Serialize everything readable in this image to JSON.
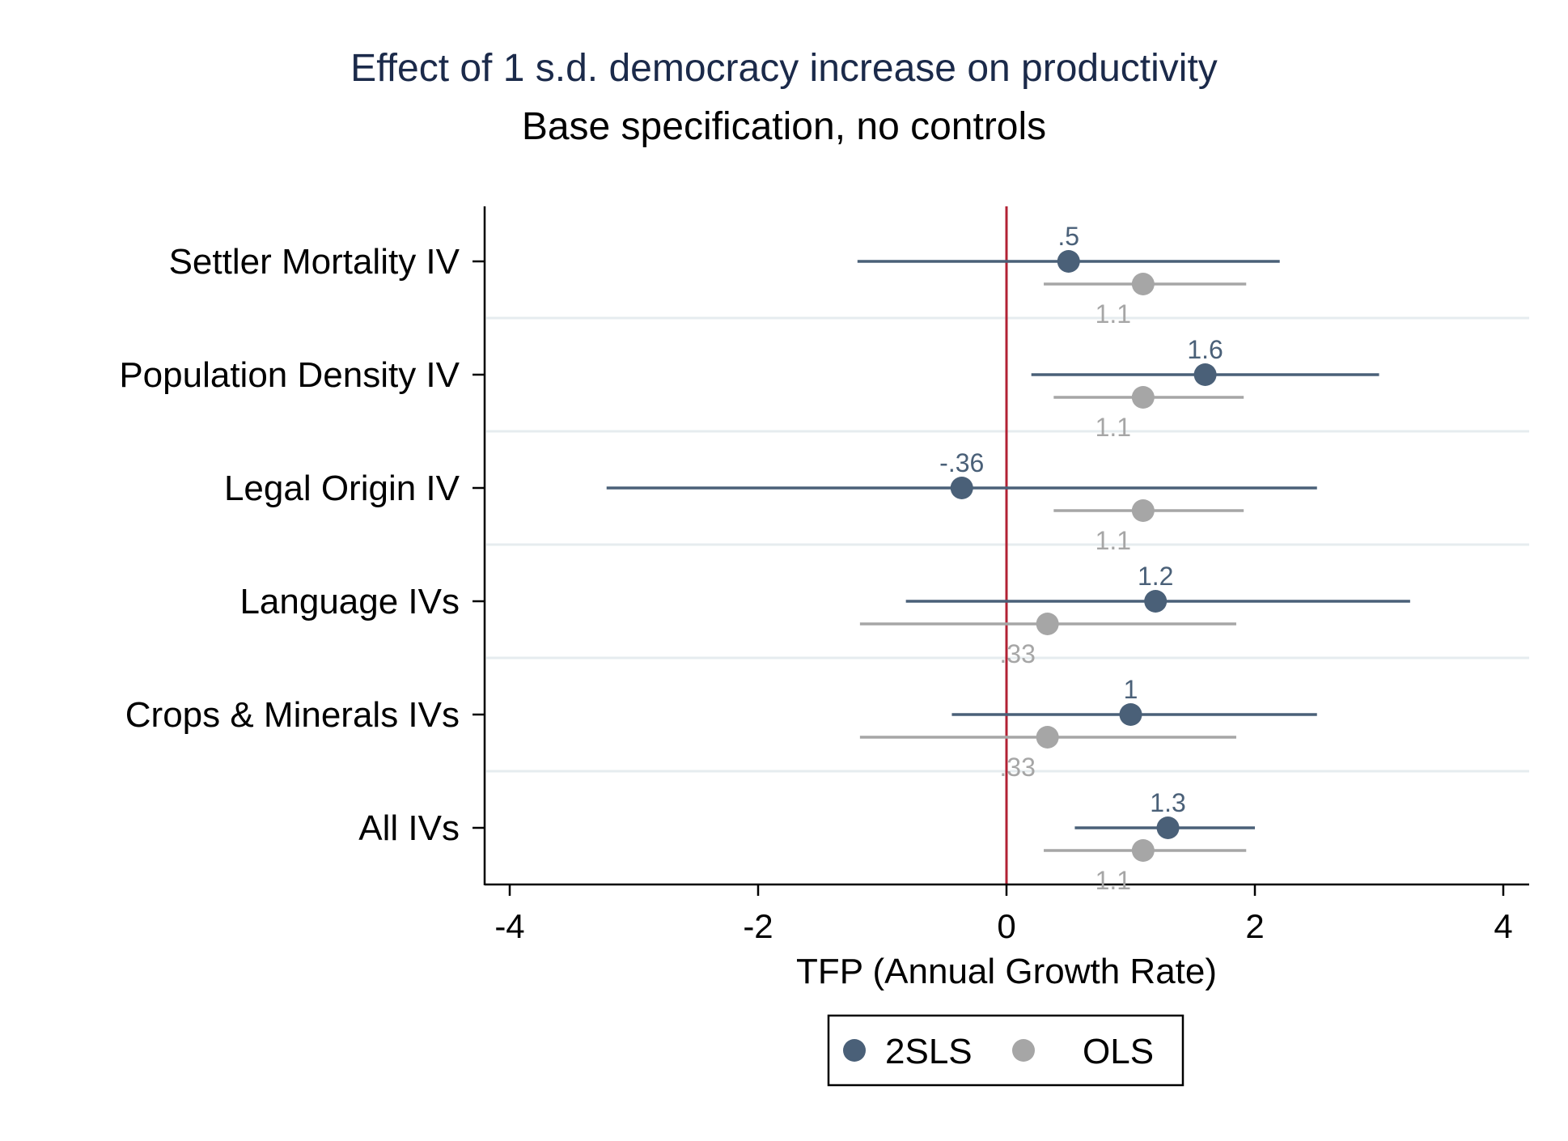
{
  "chart_data": {
    "type": "coefficient-plot",
    "title": "Effect of 1 s.d. democracy increase on productivity",
    "subtitle": "Base specification, no controls",
    "xlabel": "TFP (Annual Growth Rate)",
    "xlim": [
      -4.2,
      4.2
    ],
    "xticks": [
      -4,
      -2,
      0,
      2,
      4
    ],
    "xtick_labels": [
      "-4",
      "-2",
      "0",
      "2",
      "4"
    ],
    "reference_line": 0,
    "categories": [
      "Settler Mortality IV",
      "Population Density IV",
      "Legal Origin IV",
      "Language IVs",
      "Crops & Minerals IVs",
      "All IVs"
    ],
    "series": [
      {
        "name": "2SLS",
        "color": "#4a6078",
        "points": [
          {
            "category": "Settler Mortality IV",
            "estimate": 0.5,
            "ci_low": -1.2,
            "ci_high": 2.2,
            "label": ".5"
          },
          {
            "category": "Population Density IV",
            "estimate": 1.6,
            "ci_low": 0.2,
            "ci_high": 3.0,
            "label": "1.6"
          },
          {
            "category": "Legal Origin IV",
            "estimate": -0.36,
            "ci_low": -3.22,
            "ci_high": 2.5,
            "label": "-.36"
          },
          {
            "category": "Language IVs",
            "estimate": 1.2,
            "ci_low": -0.81,
            "ci_high": 3.25,
            "label": "1.2"
          },
          {
            "category": "Crops & Minerals IVs",
            "estimate": 1.0,
            "ci_low": -0.44,
            "ci_high": 2.5,
            "label": "1"
          },
          {
            "category": "All IVs",
            "estimate": 1.3,
            "ci_low": 0.55,
            "ci_high": 2.0,
            "label": "1.3"
          }
        ]
      },
      {
        "name": "OLS",
        "color": "#a6a6a6",
        "points": [
          {
            "category": "Settler Mortality IV",
            "estimate": 1.1,
            "ci_low": 0.3,
            "ci_high": 1.93,
            "label": "1.1"
          },
          {
            "category": "Population Density IV",
            "estimate": 1.1,
            "ci_low": 0.38,
            "ci_high": 1.91,
            "label": "1.1"
          },
          {
            "category": "Legal Origin IV",
            "estimate": 1.1,
            "ci_low": 0.38,
            "ci_high": 1.91,
            "label": "1.1"
          },
          {
            "category": "Language IVs",
            "estimate": 0.33,
            "ci_low": -1.18,
            "ci_high": 1.85,
            "label": ".33"
          },
          {
            "category": "Crops & Minerals IVs",
            "estimate": 0.33,
            "ci_low": -1.18,
            "ci_high": 1.85,
            "label": ".33"
          },
          {
            "category": "All IVs",
            "estimate": 1.1,
            "ci_low": 0.3,
            "ci_high": 1.93,
            "label": "1.1"
          }
        ]
      }
    ],
    "legend": {
      "position": "bottom",
      "entries": [
        "2SLS",
        "OLS"
      ]
    },
    "grid": true,
    "reference_line_color": "#b22234"
  }
}
